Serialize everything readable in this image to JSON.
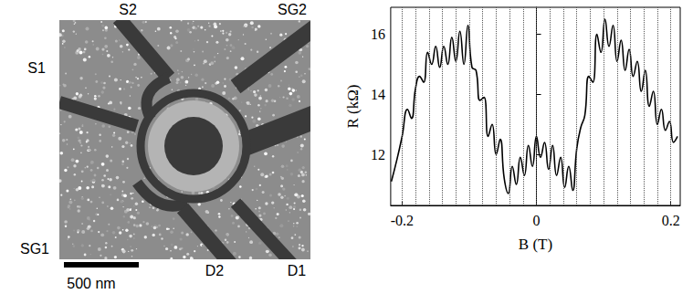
{
  "image_panel": {
    "labels": {
      "S1": "S1",
      "S2": "S2",
      "SG1": "SG1",
      "SG2": "SG2",
      "D1": "D1",
      "D2": "D2"
    },
    "scale_bar": "500 nm"
  },
  "chart_data": {
    "type": "line",
    "x_label": "B (T)",
    "y_label": "R (kΩ)",
    "x": [
      -0.216,
      -0.208,
      -0.2,
      -0.192,
      -0.186,
      -0.18,
      -0.174,
      -0.168,
      -0.162,
      -0.156,
      -0.15,
      -0.144,
      -0.138,
      -0.132,
      -0.126,
      -0.12,
      -0.114,
      -0.108,
      -0.102,
      -0.096,
      -0.09,
      -0.084,
      -0.078,
      -0.072,
      -0.066,
      -0.06,
      -0.054,
      -0.048,
      -0.042,
      -0.036,
      -0.03,
      -0.024,
      -0.018,
      -0.012,
      -0.006,
      0,
      0.006,
      0.012,
      0.018,
      0.024,
      0.03,
      0.036,
      0.042,
      0.048,
      0.054,
      0.06,
      0.066,
      0.072,
      0.078,
      0.084,
      0.09,
      0.096,
      0.102,
      0.108,
      0.114,
      0.12,
      0.126,
      0.132,
      0.138,
      0.144,
      0.15,
      0.156,
      0.162,
      0.168,
      0.174,
      0.18,
      0.186,
      0.192,
      0.198,
      0.204,
      0.21
    ],
    "values": [
      11.1,
      11.8,
      12.6,
      13.5,
      13.2,
      14.2,
      14.6,
      14.4,
      15.4,
      15.0,
      15.6,
      14.9,
      15.6,
      15.0,
      15.9,
      15.1,
      16.1,
      15.0,
      16.3,
      14.9,
      14.8,
      13.8,
      13.9,
      12.6,
      13.0,
      12.0,
      12.5,
      11.2,
      10.7,
      11.6,
      11.0,
      11.9,
      11.3,
      12.3,
      11.6,
      12.6,
      11.9,
      12.4,
      11.5,
      12.3,
      11.3,
      11.9,
      10.9,
      11.6,
      10.8,
      12.2,
      12.9,
      13.3,
      14.6,
      14.4,
      16.0,
      15.4,
      16.5,
      15.6,
      16.3,
      15.1,
      15.8,
      14.8,
      15.5,
      14.6,
      15.1,
      14.1,
      14.8,
      13.6,
      14.1,
      13.0,
      13.5,
      12.8,
      13.1,
      12.4,
      12.6
    ],
    "color": "#000000",
    "xlim": [
      -0.217,
      0.214
    ],
    "xticks": [
      -0.2,
      0,
      0.2
    ],
    "ylim": [
      10.3,
      16.9
    ],
    "yticks": [
      12,
      14,
      16
    ],
    "grid": true
  }
}
